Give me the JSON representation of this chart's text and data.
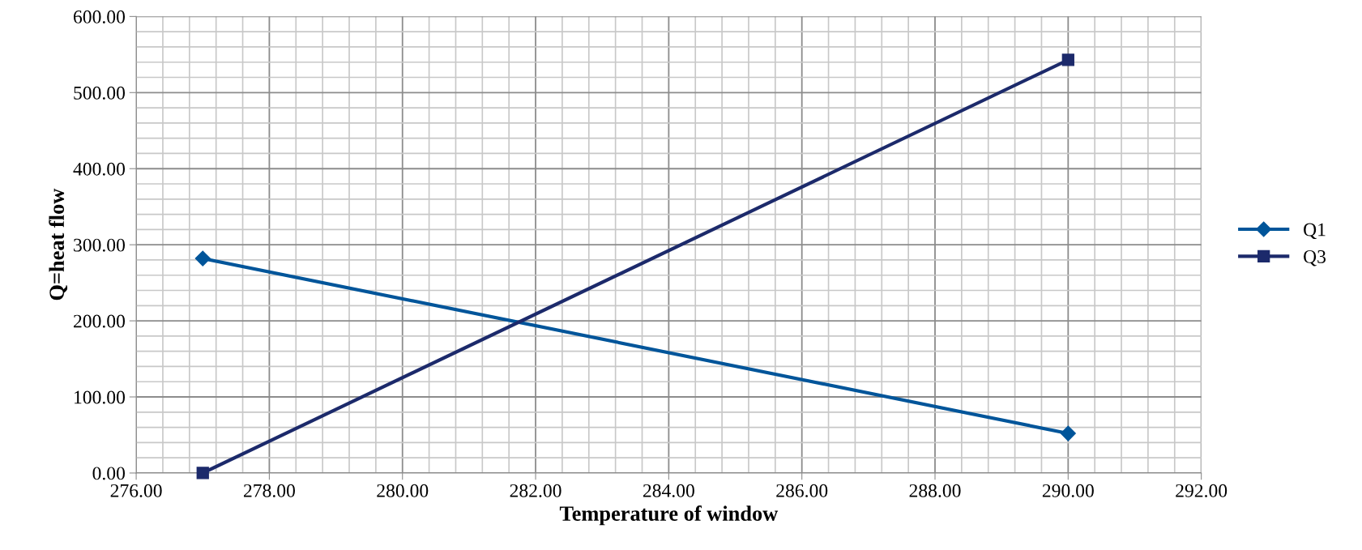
{
  "chart_data": {
    "type": "line",
    "xlabel": "Temperature of window",
    "ylabel": "Q=heat flow",
    "series": [
      {
        "name": "Q1",
        "color": "#00559a",
        "marker": "diamond",
        "values": [
          282,
          52
        ]
      },
      {
        "name": "Q3",
        "color": "#1c2a6b",
        "marker": "square",
        "values": [
          0,
          543
        ]
      }
    ],
    "x": [
      277,
      290
    ],
    "xlim": [
      276,
      292
    ],
    "xticks": [
      {
        "value": 276,
        "label": "276.00"
      },
      {
        "value": 278,
        "label": "278.00"
      },
      {
        "value": 280,
        "label": "280.00"
      },
      {
        "value": 282,
        "label": "282.00"
      },
      {
        "value": 284,
        "label": "284.00"
      },
      {
        "value": 286,
        "label": "286.00"
      },
      {
        "value": 288,
        "label": "288.00"
      },
      {
        "value": 290,
        "label": "290.00"
      },
      {
        "value": 292,
        "label": "292.00"
      }
    ],
    "ylim": [
      0,
      600
    ],
    "yticks": [
      {
        "value": 0,
        "label": "0.00"
      },
      {
        "value": 100,
        "label": "100.00"
      },
      {
        "value": 200,
        "label": "200.00"
      },
      {
        "value": 300,
        "label": "300.00"
      },
      {
        "value": 400,
        "label": "400.00"
      },
      {
        "value": 500,
        "label": "500.00"
      },
      {
        "value": 600,
        "label": "600.00"
      }
    ],
    "grid": true,
    "legend": "right",
    "line_style": "solid"
  }
}
